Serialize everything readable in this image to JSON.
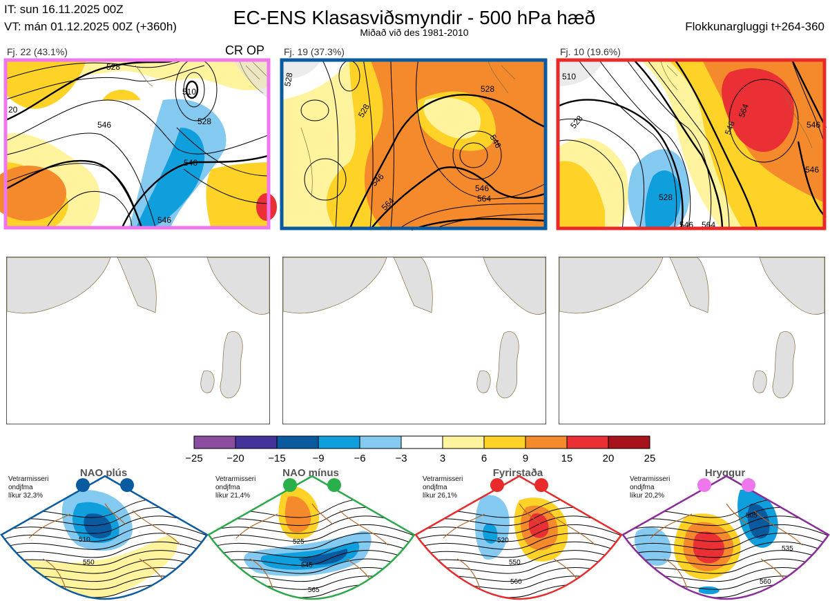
{
  "header": {
    "init_time": "IT: sun 16.11.2025 00Z",
    "valid_time": "VT: mán 01.12.2025 00Z  (+360h)",
    "title": "EC-ENS Klasasviðsmyndir - 500 hPa hæð",
    "subtitle": "Miðað við des 1981-2010",
    "window": "Flokkunargluggi t+264-360"
  },
  "clusters": [
    {
      "label": "Fj. 22 (43.1%)",
      "tag": "CR OP",
      "border_color": "#ee77ee",
      "contours": [
        "528",
        "510",
        "546",
        "546",
        "546",
        "528",
        "20"
      ]
    },
    {
      "label": "Fj. 19 (37.3%)",
      "tag": "",
      "border_color": "#0a5aa0",
      "contours": [
        "528",
        "528",
        "546",
        "564",
        "546",
        "546",
        "564",
        "528"
      ]
    },
    {
      "label": "Fj. 10 (19.6%)",
      "tag": "",
      "border_color": "#e82a2a",
      "contours": [
        "510",
        "528",
        "546",
        "564",
        "528",
        "546",
        "564",
        "546",
        "546"
      ]
    }
  ],
  "colorbar": {
    "ticks": [
      "−25",
      "−20",
      "−15",
      "−9",
      "−6",
      "−3",
      "3",
      "6",
      "9",
      "15",
      "20",
      "25"
    ],
    "colors": [
      "#8b4d9f",
      "#43339a",
      "#0a5aa0",
      "#109fdd",
      "#84c9ef",
      "#ffffff",
      "#fff49d",
      "#fed227",
      "#f58a2d",
      "#ea3034",
      "#a6131a"
    ]
  },
  "regimes": [
    {
      "title": "NAO plús",
      "note": "Vetrarmisseri\nondjfma\nlíkur 32,3%",
      "frame_color": "#0a5aa0",
      "dot_color": "#0a5aa0",
      "contours": [
        "510",
        "550"
      ]
    },
    {
      "title": "NAO mínus",
      "note": "Vetrarmisseri\nondjfma\nlíkur 21,4%",
      "frame_color": "#2aa84a",
      "dot_color": "#2ab04a",
      "contours": [
        "525",
        "545",
        "565"
      ]
    },
    {
      "title": "Fyrirstaða",
      "note": "Vetrarmisseri\nondjfma\nlíkur 26,1%",
      "frame_color": "#e82a2a",
      "dot_color": "#e82a2a",
      "contours": [
        "520",
        "550",
        "560"
      ]
    },
    {
      "title": "Hryggur",
      "note": "Vetrarmisseri\nondjfma\nlíkur 20,2%",
      "frame_color": "#8b2a9a",
      "dot_color": "#ee77ee",
      "contours": [
        "505",
        "535",
        "560"
      ]
    }
  ]
}
